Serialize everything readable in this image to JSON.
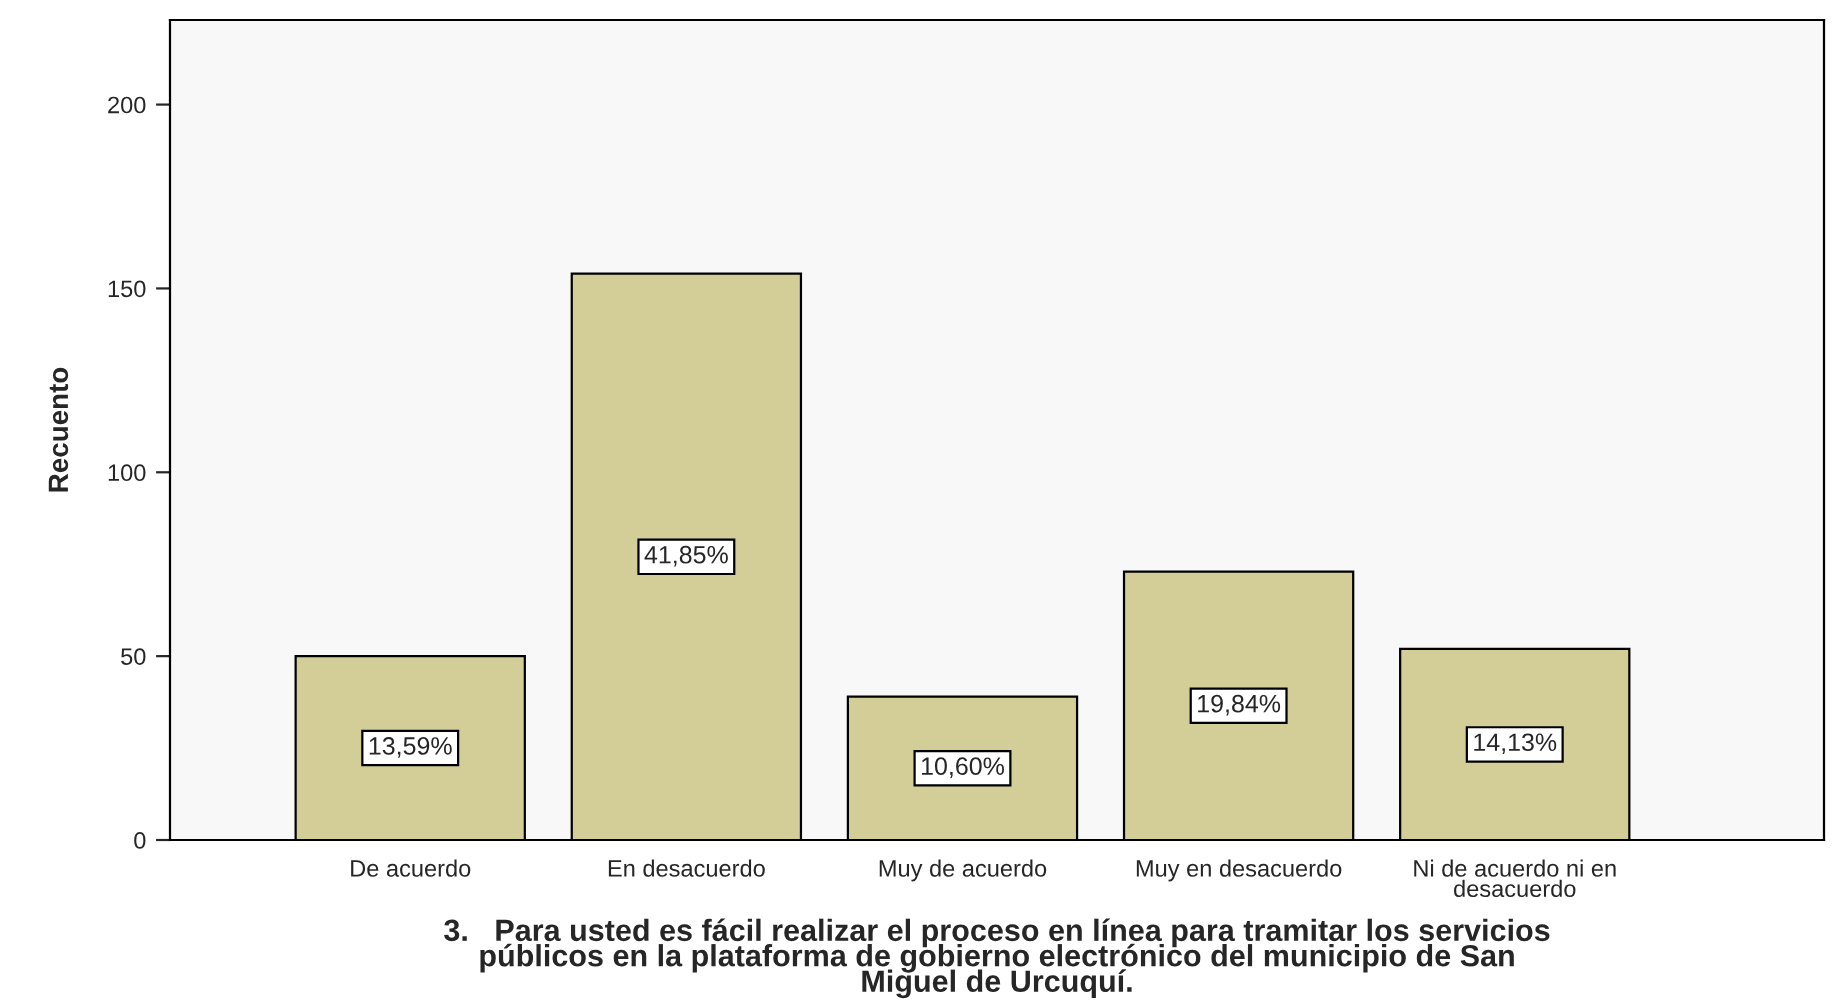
{
  "chart_data": {
    "type": "bar",
    "categories": [
      "De acuerdo",
      "En desacuerdo",
      "Muy de acuerdo",
      "Muy en desacuerdo",
      "Ni de acuerdo ni en\ndesacuerdo"
    ],
    "values": [
      50,
      154,
      39,
      73,
      52
    ],
    "annotations": [
      "13,59%",
      "41,85%",
      "10,60%",
      "19,84%",
      "14,13%"
    ],
    "color": "#d3ce97",
    "ylabel": "Recuento",
    "xlabel": "3.   Para usted es fácil realizar el proceso en línea para tramitar los servicios\npúblicos en la plataforma de gobierno electrónico del municipio de San\nMiguel de Urcuquí.",
    "ylim": [
      0,
      223
    ],
    "yticks": [
      0,
      50,
      100,
      150,
      200
    ],
    "grid": false,
    "legend": false
  }
}
